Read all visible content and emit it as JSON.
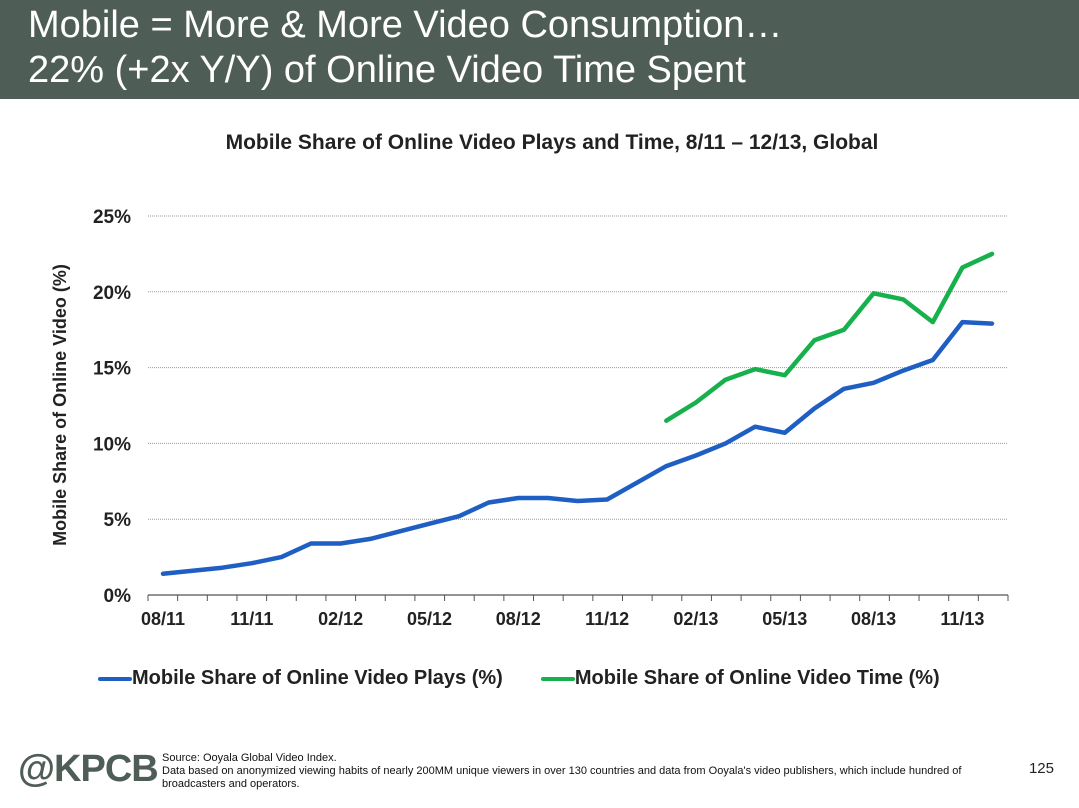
{
  "slide": {
    "title_line1": "Mobile = More & More Video Consumption…",
    "title_line2": "22% (+2x Y/Y) of Online Video Time Spent",
    "logo": "@KPCB",
    "source_line1": "Source: Ooyala Global Video Index.",
    "source_line2": "Data based on anonymized viewing habits of nearly 200MM unique viewers in over 130 countries and data from Ooyala's video publishers, which include hundred of broadcasters and operators.",
    "page_number": "125"
  },
  "chart_data": {
    "type": "line",
    "title": "Mobile Share of Online Video Plays and Time, 8/11 – 12/13, Global",
    "xlabel": "",
    "ylabel": "Mobile Share of Online Video (%)",
    "ylim": [
      0,
      25
    ],
    "yticks": [
      0,
      5,
      10,
      15,
      20,
      25
    ],
    "ytick_labels": [
      "0%",
      "5%",
      "10%",
      "15%",
      "20%",
      "25%"
    ],
    "x": [
      "08/11",
      "09/11",
      "10/11",
      "11/11",
      "12/11",
      "01/12",
      "02/12",
      "03/12",
      "04/12",
      "05/12",
      "06/12",
      "07/12",
      "08/12",
      "09/12",
      "10/12",
      "11/12",
      "12/12",
      "01/13",
      "02/13",
      "03/13",
      "04/13",
      "05/13",
      "06/13",
      "07/13",
      "08/13",
      "09/13",
      "10/13",
      "11/13",
      "12/13"
    ],
    "xtick_labels": [
      "08/11",
      "11/11",
      "02/12",
      "05/12",
      "08/12",
      "11/12",
      "02/13",
      "05/13",
      "08/13",
      "11/13"
    ],
    "grid": true,
    "legend_position": "bottom",
    "series": [
      {
        "name": "Mobile Share of Online Video Plays (%)",
        "color": "#1f5fc4",
        "values": [
          1.4,
          1.6,
          1.8,
          2.1,
          2.5,
          3.4,
          3.4,
          3.7,
          4.2,
          4.7,
          5.2,
          6.1,
          6.4,
          6.4,
          6.2,
          6.3,
          7.4,
          8.5,
          9.2,
          10.0,
          11.1,
          10.7,
          12.3,
          13.6,
          14.0,
          14.8,
          15.5,
          18.0,
          17.9
        ]
      },
      {
        "name": "Mobile Share of Online Video Time (%)",
        "color": "#16b04c",
        "values": [
          null,
          null,
          null,
          null,
          null,
          null,
          null,
          null,
          null,
          null,
          null,
          null,
          null,
          null,
          null,
          null,
          null,
          11.5,
          12.7,
          14.2,
          14.9,
          14.5,
          16.8,
          17.5,
          19.9,
          19.5,
          18.0,
          21.6,
          22.5
        ]
      }
    ]
  }
}
